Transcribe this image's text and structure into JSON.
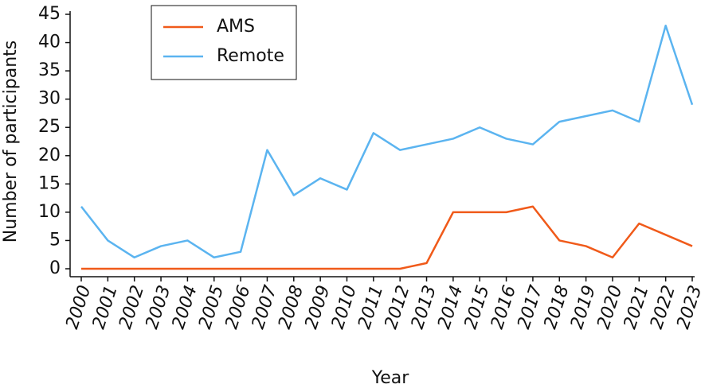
{
  "chart_data": {
    "type": "line",
    "x_label": "Year",
    "y_label": "Number of participants",
    "categories": [
      "2000",
      "2001",
      "2002",
      "2003",
      "2004",
      "2005",
      "2006",
      "2007",
      "2008",
      "2009",
      "2010",
      "2011",
      "2012",
      "2013",
      "2014",
      "2015",
      "2016",
      "2017",
      "2018",
      "2019",
      "2020",
      "2021",
      "2022",
      "2023"
    ],
    "series": [
      {
        "name": "AMS",
        "color": "#f05a1a",
        "values": [
          0,
          0,
          0,
          0,
          0,
          0,
          0,
          0,
          0,
          0,
          0,
          0,
          0,
          1,
          10,
          10,
          10,
          11,
          5,
          4,
          2,
          8,
          6,
          4
        ]
      },
      {
        "name": "Remote",
        "color": "#5bb4f0",
        "values": [
          11,
          5,
          2,
          4,
          5,
          2,
          3,
          21,
          13,
          16,
          14,
          24,
          21,
          22,
          23,
          25,
          23,
          22,
          26,
          27,
          28,
          26,
          43,
          29
        ]
      }
    ],
    "ylim": [
      0,
      45
    ],
    "yticks": [
      0,
      5,
      10,
      15,
      20,
      25,
      30,
      35,
      40,
      45
    ],
    "legend": "upper left"
  }
}
